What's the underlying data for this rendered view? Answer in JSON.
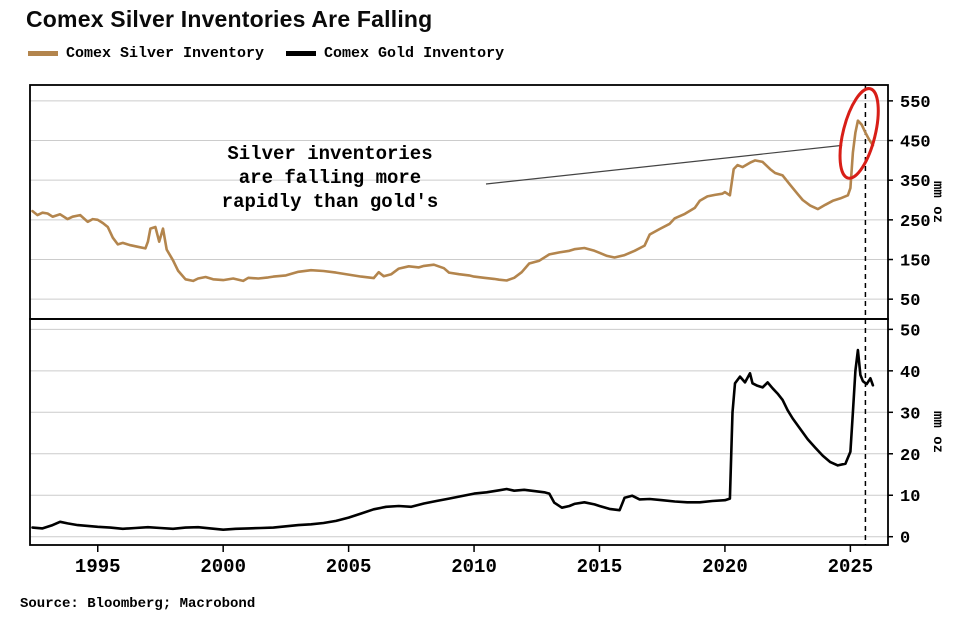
{
  "title": "Comex Silver Inventories Are Falling",
  "legend": [
    {
      "label": "Comex Silver Inventory",
      "color": "#b3854d"
    },
    {
      "label": "Comex Gold Inventory",
      "color": "#000000"
    }
  ],
  "annotation": {
    "lines": [
      "Silver inventories",
      "are falling more",
      "rapidly than gold's"
    ]
  },
  "source": "Source: Bloomberg; Macrobond",
  "chart_data": {
    "type": "line",
    "title": "Comex Silver Inventories Are Falling",
    "x_ticks": [
      1995,
      2000,
      2005,
      2010,
      2015,
      2020,
      2025
    ],
    "x_range": [
      1992.3,
      2026.5
    ],
    "grid": true,
    "legend_position": "top",
    "dashed_line_x": 2025.6,
    "highlight_ellipse": {
      "x": 2025.35,
      "y": 468,
      "color": "#d81e17"
    },
    "panels": [
      {
        "name": "silver",
        "ylabel": "mm oz",
        "yticks": [
          50,
          150,
          250,
          350,
          450,
          550
        ],
        "ylim": [
          0,
          590
        ],
        "series": {
          "name": "Comex Silver Inventory",
          "color": "#b3854d",
          "points": [
            [
              1992.4,
              272
            ],
            [
              1992.6,
              262
            ],
            [
              1992.8,
              268
            ],
            [
              1993.0,
              266
            ],
            [
              1993.2,
              258
            ],
            [
              1993.5,
              264
            ],
            [
              1993.8,
              252
            ],
            [
              1994.0,
              258
            ],
            [
              1994.3,
              262
            ],
            [
              1994.6,
              245
            ],
            [
              1994.8,
              252
            ],
            [
              1995.0,
              250
            ],
            [
              1995.2,
              242
            ],
            [
              1995.4,
              232
            ],
            [
              1995.6,
              205
            ],
            [
              1995.8,
              188
            ],
            [
              1996.0,
              192
            ],
            [
              1996.3,
              186
            ],
            [
              1996.6,
              182
            ],
            [
              1996.9,
              178
            ],
            [
              1997.0,
              195
            ],
            [
              1997.1,
              228
            ],
            [
              1997.3,
              232
            ],
            [
              1997.45,
              195
            ],
            [
              1997.6,
              228
            ],
            [
              1997.75,
              175
            ],
            [
              1998.0,
              148
            ],
            [
              1998.2,
              122
            ],
            [
              1998.5,
              100
            ],
            [
              1998.8,
              96
            ],
            [
              1999.0,
              102
            ],
            [
              1999.3,
              106
            ],
            [
              1999.6,
              100
            ],
            [
              2000.0,
              98
            ],
            [
              2000.4,
              102
            ],
            [
              2000.8,
              96
            ],
            [
              2001.0,
              104
            ],
            [
              2001.4,
              102
            ],
            [
              2001.8,
              105
            ],
            [
              2002.0,
              107
            ],
            [
              2002.5,
              110
            ],
            [
              2003.0,
              119
            ],
            [
              2003.5,
              123
            ],
            [
              2004.0,
              121
            ],
            [
              2004.5,
              117
            ],
            [
              2005.0,
              112
            ],
            [
              2005.5,
              107
            ],
            [
              2006.0,
              103
            ],
            [
              2006.2,
              118
            ],
            [
              2006.4,
              108
            ],
            [
              2006.7,
              113
            ],
            [
              2007.0,
              127
            ],
            [
              2007.4,
              133
            ],
            [
              2007.8,
              130
            ],
            [
              2008.0,
              134
            ],
            [
              2008.4,
              137
            ],
            [
              2008.8,
              128
            ],
            [
              2009.0,
              117
            ],
            [
              2009.4,
              113
            ],
            [
              2009.8,
              110
            ],
            [
              2010.0,
              107
            ],
            [
              2010.4,
              104
            ],
            [
              2010.8,
              101
            ],
            [
              2011.0,
              99
            ],
            [
              2011.3,
              97
            ],
            [
              2011.6,
              104
            ],
            [
              2011.9,
              118
            ],
            [
              2012.2,
              140
            ],
            [
              2012.6,
              147
            ],
            [
              2013.0,
              163
            ],
            [
              2013.4,
              168
            ],
            [
              2013.8,
              172
            ],
            [
              2014.0,
              176
            ],
            [
              2014.4,
              179
            ],
            [
              2014.8,
              172
            ],
            [
              2015.0,
              167
            ],
            [
              2015.3,
              159
            ],
            [
              2015.6,
              155
            ],
            [
              2016.0,
              161
            ],
            [
              2016.4,
              172
            ],
            [
              2016.8,
              185
            ],
            [
              2017.0,
              213
            ],
            [
              2017.4,
              227
            ],
            [
              2017.8,
              240
            ],
            [
              2018.0,
              254
            ],
            [
              2018.4,
              265
            ],
            [
              2018.8,
              280
            ],
            [
              2019.0,
              298
            ],
            [
              2019.3,
              309
            ],
            [
              2019.6,
              313
            ],
            [
              2019.9,
              316
            ],
            [
              2020.0,
              320
            ],
            [
              2020.2,
              312
            ],
            [
              2020.35,
              378
            ],
            [
              2020.5,
              388
            ],
            [
              2020.7,
              383
            ],
            [
              2021.0,
              394
            ],
            [
              2021.2,
              400
            ],
            [
              2021.5,
              396
            ],
            [
              2021.8,
              378
            ],
            [
              2022.0,
              368
            ],
            [
              2022.3,
              362
            ],
            [
              2022.6,
              338
            ],
            [
              2022.9,
              315
            ],
            [
              2023.1,
              300
            ],
            [
              2023.4,
              286
            ],
            [
              2023.7,
              277
            ],
            [
              2024.0,
              288
            ],
            [
              2024.3,
              298
            ],
            [
              2024.6,
              304
            ],
            [
              2024.9,
              312
            ],
            [
              2025.0,
              330
            ],
            [
              2025.1,
              420
            ],
            [
              2025.2,
              470
            ],
            [
              2025.3,
              500
            ],
            [
              2025.45,
              490
            ],
            [
              2025.6,
              470
            ],
            [
              2025.75,
              452
            ],
            [
              2025.9,
              438
            ]
          ]
        }
      },
      {
        "name": "gold",
        "ylabel": "mm oz",
        "yticks": [
          0,
          10,
          20,
          30,
          40,
          50
        ],
        "ylim": [
          -2,
          52.5
        ],
        "series": {
          "name": "Comex Gold Inventory",
          "color": "#000000",
          "points": [
            [
              1992.4,
              2.2
            ],
            [
              1992.8,
              2.0
            ],
            [
              1993.2,
              2.8
            ],
            [
              1993.5,
              3.6
            ],
            [
              1993.8,
              3.2
            ],
            [
              1994.2,
              2.8
            ],
            [
              1994.6,
              2.6
            ],
            [
              1995.0,
              2.4
            ],
            [
              1995.5,
              2.2
            ],
            [
              1996.0,
              1.9
            ],
            [
              1996.5,
              2.1
            ],
            [
              1997.0,
              2.3
            ],
            [
              1997.5,
              2.1
            ],
            [
              1998.0,
              1.9
            ],
            [
              1998.5,
              2.2
            ],
            [
              1999.0,
              2.3
            ],
            [
              1999.5,
              2.0
            ],
            [
              2000.0,
              1.7
            ],
            [
              2000.5,
              1.9
            ],
            [
              2001.0,
              2.0
            ],
            [
              2001.5,
              2.1
            ],
            [
              2002.0,
              2.2
            ],
            [
              2002.5,
              2.5
            ],
            [
              2003.0,
              2.8
            ],
            [
              2003.5,
              3.0
            ],
            [
              2004.0,
              3.3
            ],
            [
              2004.5,
              3.8
            ],
            [
              2005.0,
              4.6
            ],
            [
              2005.5,
              5.6
            ],
            [
              2006.0,
              6.6
            ],
            [
              2006.5,
              7.2
            ],
            [
              2007.0,
              7.4
            ],
            [
              2007.5,
              7.2
            ],
            [
              2008.0,
              8.0
            ],
            [
              2008.5,
              8.6
            ],
            [
              2009.0,
              9.2
            ],
            [
              2009.5,
              9.8
            ],
            [
              2010.0,
              10.4
            ],
            [
              2010.5,
              10.7
            ],
            [
              2011.0,
              11.2
            ],
            [
              2011.3,
              11.5
            ],
            [
              2011.6,
              11.1
            ],
            [
              2012.0,
              11.3
            ],
            [
              2012.4,
              11.0
            ],
            [
              2012.8,
              10.7
            ],
            [
              2013.0,
              10.4
            ],
            [
              2013.2,
              8.2
            ],
            [
              2013.5,
              7.0
            ],
            [
              2013.8,
              7.4
            ],
            [
              2014.0,
              7.9
            ],
            [
              2014.4,
              8.3
            ],
            [
              2014.8,
              7.8
            ],
            [
              2015.0,
              7.4
            ],
            [
              2015.4,
              6.7
            ],
            [
              2015.8,
              6.4
            ],
            [
              2016.0,
              9.4
            ],
            [
              2016.3,
              9.9
            ],
            [
              2016.6,
              9.0
            ],
            [
              2017.0,
              9.1
            ],
            [
              2017.5,
              8.8
            ],
            [
              2018.0,
              8.5
            ],
            [
              2018.5,
              8.3
            ],
            [
              2019.0,
              8.3
            ],
            [
              2019.5,
              8.6
            ],
            [
              2020.0,
              8.8
            ],
            [
              2020.2,
              9.2
            ],
            [
              2020.3,
              30.0
            ],
            [
              2020.4,
              37.0
            ],
            [
              2020.6,
              38.6
            ],
            [
              2020.8,
              37.2
            ],
            [
              2021.0,
              39.4
            ],
            [
              2021.1,
              37.0
            ],
            [
              2021.3,
              36.4
            ],
            [
              2021.5,
              36.0
            ],
            [
              2021.7,
              37.2
            ],
            [
              2021.9,
              35.8
            ],
            [
              2022.1,
              34.5
            ],
            [
              2022.3,
              33.0
            ],
            [
              2022.5,
              30.5
            ],
            [
              2022.7,
              28.5
            ],
            [
              2023.0,
              26.0
            ],
            [
              2023.3,
              23.5
            ],
            [
              2023.6,
              21.5
            ],
            [
              2023.9,
              19.5
            ],
            [
              2024.2,
              18.0
            ],
            [
              2024.5,
              17.2
            ],
            [
              2024.8,
              17.6
            ],
            [
              2025.0,
              20.5
            ],
            [
              2025.1,
              30.0
            ],
            [
              2025.2,
              40.0
            ],
            [
              2025.3,
              45.0
            ],
            [
              2025.4,
              39.0
            ],
            [
              2025.5,
              37.5
            ],
            [
              2025.65,
              36.8
            ],
            [
              2025.8,
              38.2
            ],
            [
              2025.9,
              36.5
            ]
          ]
        }
      }
    ]
  }
}
